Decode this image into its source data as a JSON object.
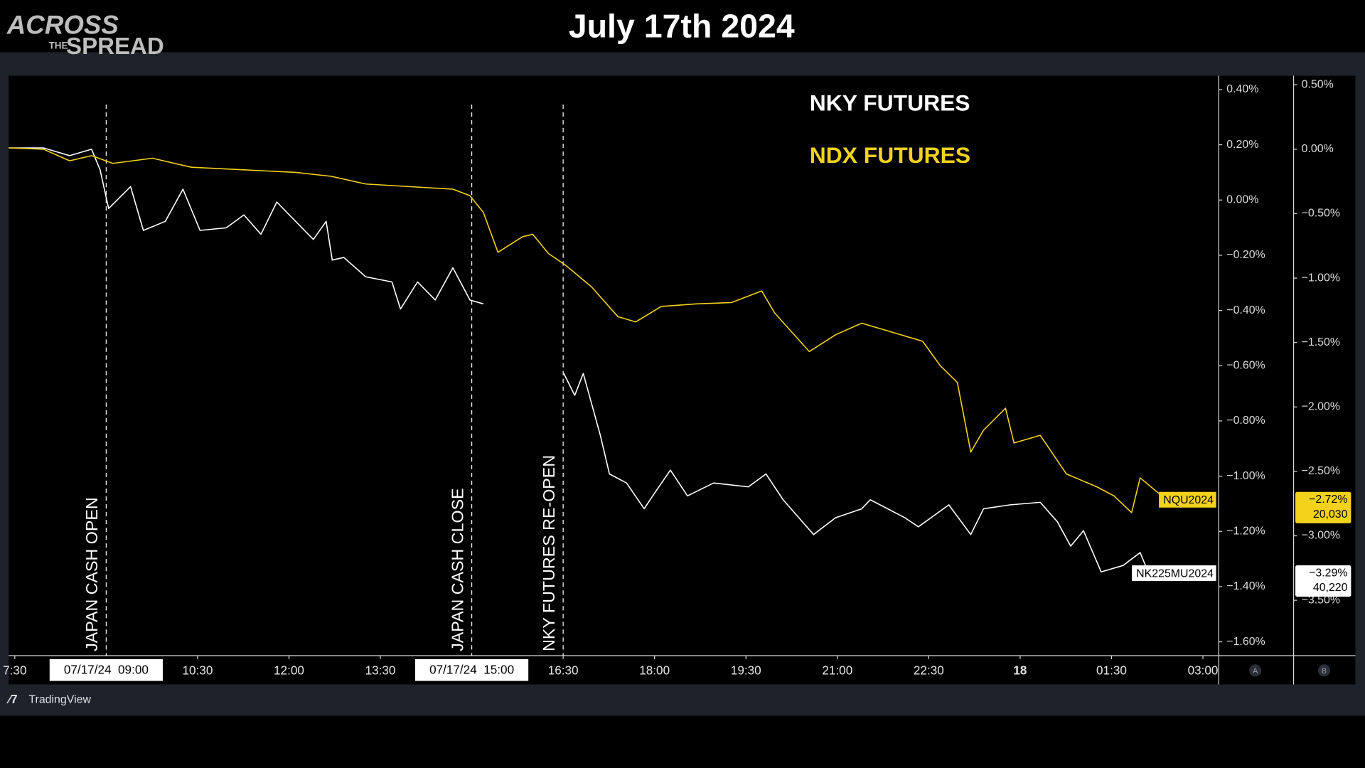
{
  "logo": {
    "top": "ACROSS",
    "middle": "THE",
    "bottom": "SPREAD"
  },
  "footer": {
    "brand": "TradingView"
  },
  "chart_data": {
    "type": "line",
    "title": "July 17th 2024",
    "xlim": [
      7.4,
      27.26
    ],
    "xticks": [
      {
        "value": 7.5,
        "label": "7:30"
      },
      {
        "value": 10.5,
        "label": "10:30"
      },
      {
        "value": 12,
        "label": "12:00"
      },
      {
        "value": 13.5,
        "label": "13:30"
      },
      {
        "value": 16.5,
        "label": "16:30"
      },
      {
        "value": 18,
        "label": "18:00"
      },
      {
        "value": 19.5,
        "label": "19:30"
      },
      {
        "value": 21,
        "label": "21:00"
      },
      {
        "value": 22.5,
        "label": "22:30"
      },
      {
        "value": 24,
        "label": "18"
      },
      {
        "value": 25.5,
        "label": "01:30"
      },
      {
        "value": 27,
        "label": "03:00"
      }
    ],
    "x_highlights": [
      {
        "value": 9,
        "label": "07/17/24  09:00"
      },
      {
        "value": 15,
        "label": "07/17/24  15:00"
      }
    ],
    "ylim": [
      -1.65,
      0.45
    ],
    "yticks": [
      {
        "value": 0.4,
        "label": "0.40%"
      },
      {
        "value": 0.2,
        "label": "0.20%"
      },
      {
        "value": 0,
        "label": "0.00%"
      },
      {
        "value": -0.2,
        "label": "−0.20%"
      },
      {
        "value": -0.4,
        "label": "−0.40%"
      },
      {
        "value": -0.6,
        "label": "−0.60%"
      },
      {
        "value": -0.8,
        "label": "−0.80%"
      },
      {
        "value": -1,
        "label": "−1.00%"
      },
      {
        "value": -1.2,
        "label": "−1.20%"
      },
      {
        "value": -1.4,
        "label": "−1.40%"
      },
      {
        "value": -1.6,
        "label": "−1.60%"
      }
    ],
    "y_axis_name": "A",
    "y2lim": [
      -3.93,
      0.57
    ],
    "y2ticks": [
      {
        "value": 0.5,
        "label": "0.50%"
      },
      {
        "value": 0,
        "label": "0.00%"
      },
      {
        "value": -0.5,
        "label": "−0.50%"
      },
      {
        "value": -1,
        "label": "−1.00%"
      },
      {
        "value": -1.5,
        "label": "−1.50%"
      },
      {
        "value": -2,
        "label": "−2.00%"
      },
      {
        "value": -2.5,
        "label": "−2.50%"
      },
      {
        "value": -3,
        "label": "−3.00%"
      },
      {
        "value": -3.5,
        "label": "−3.50%"
      }
    ],
    "y2_axis_name": "B",
    "markers": [
      {
        "x": 9,
        "label": "JAPAN CASH OPEN"
      },
      {
        "x": 15,
        "label": "JAPAN CASH CLOSE"
      },
      {
        "x": 16.5,
        "label": "NKY FUTURES RE-OPEN"
      }
    ],
    "series": [
      {
        "name": "NKY FUTURES",
        "symbol": "NK225MU2024",
        "color": "#ffffff",
        "axis": "y2",
        "last_label": "−3.29%",
        "last_price": "40,220",
        "x": [
          7.4,
          7.97,
          8.4,
          8.76,
          8.9,
          9.04,
          9.4,
          9.61,
          9.97,
          10.26,
          10.54,
          10.97,
          11.26,
          11.54,
          11.8,
          12.11,
          12.4,
          12.61,
          12.71,
          12.9,
          13.26,
          13.69,
          13.83,
          14.11,
          14.4,
          14.69,
          14.97,
          15.19,
          15.8,
          16.51,
          16.69,
          16.83,
          17.11,
          17.26,
          17.54,
          17.83,
          17.97,
          18.26,
          18.54,
          18.97,
          19.54,
          19.83,
          20.11,
          20.61,
          20.97,
          21.4,
          21.54,
          22.11,
          22.33,
          22.83,
          23.19,
          23.4,
          23.83,
          24.33,
          24.61,
          24.83,
          25.04,
          25.33,
          25.69,
          25.97,
          26.11
        ],
        "values": [
          0.01,
          0.01,
          -0.05,
          0,
          -0.16,
          -0.46,
          -0.29,
          -0.63,
          -0.56,
          -0.31,
          -0.63,
          -0.61,
          -0.51,
          -0.66,
          -0.41,
          -0.56,
          -0.7,
          -0.56,
          -0.86,
          -0.84,
          -0.99,
          -1.03,
          -1.24,
          -1.03,
          -1.17,
          -0.92,
          -1.17,
          -1.2,
          null,
          -1.74,
          -1.91,
          -1.74,
          -2.22,
          -2.52,
          -2.59,
          -2.79,
          -2.69,
          -2.49,
          -2.69,
          -2.59,
          -2.62,
          -2.52,
          -2.72,
          -2.99,
          -2.86,
          -2.79,
          -2.72,
          -2.86,
          -2.93,
          -2.76,
          -2.99,
          -2.79,
          -2.76,
          -2.74,
          -2.89,
          -3.08,
          -2.96,
          -3.28,
          -3.23,
          -3.13,
          -3.29
        ]
      },
      {
        "name": "NDX FUTURES",
        "symbol": "NQU2024",
        "color": "#f2d21b",
        "axis": "y2",
        "last_label": "−2.72%",
        "last_price": "20,030",
        "x": [
          7.4,
          7.97,
          8.4,
          8.76,
          9.11,
          9.76,
          10.4,
          11.26,
          12.11,
          12.69,
          13.26,
          13.97,
          14.69,
          14.97,
          15.19,
          15.43,
          15.83,
          16.0,
          16.26,
          16.54,
          16.97,
          17.4,
          17.69,
          18.11,
          18.69,
          19.26,
          19.76,
          19.97,
          20.54,
          20.97,
          21.4,
          21.83,
          22.4,
          22.69,
          22.97,
          23.19,
          23.4,
          23.76,
          23.9,
          24.33,
          24.76,
          25.26,
          25.54,
          25.83,
          25.97,
          26.4
        ],
        "values": [
          0.01,
          0,
          -0.09,
          -0.05,
          -0.11,
          -0.07,
          -0.14,
          -0.16,
          -0.18,
          -0.21,
          -0.27,
          -0.29,
          -0.31,
          -0.36,
          -0.49,
          -0.8,
          -0.68,
          -0.66,
          -0.81,
          -0.9,
          -1.07,
          -1.3,
          -1.34,
          -1.22,
          -1.2,
          -1.19,
          -1.1,
          -1.27,
          -1.57,
          -1.44,
          -1.35,
          -1.41,
          -1.49,
          -1.68,
          -1.81,
          -2.35,
          -2.18,
          -2.01,
          -2.28,
          -2.22,
          -2.52,
          -2.62,
          -2.69,
          -2.82,
          -2.55,
          -2.72
        ]
      }
    ]
  }
}
